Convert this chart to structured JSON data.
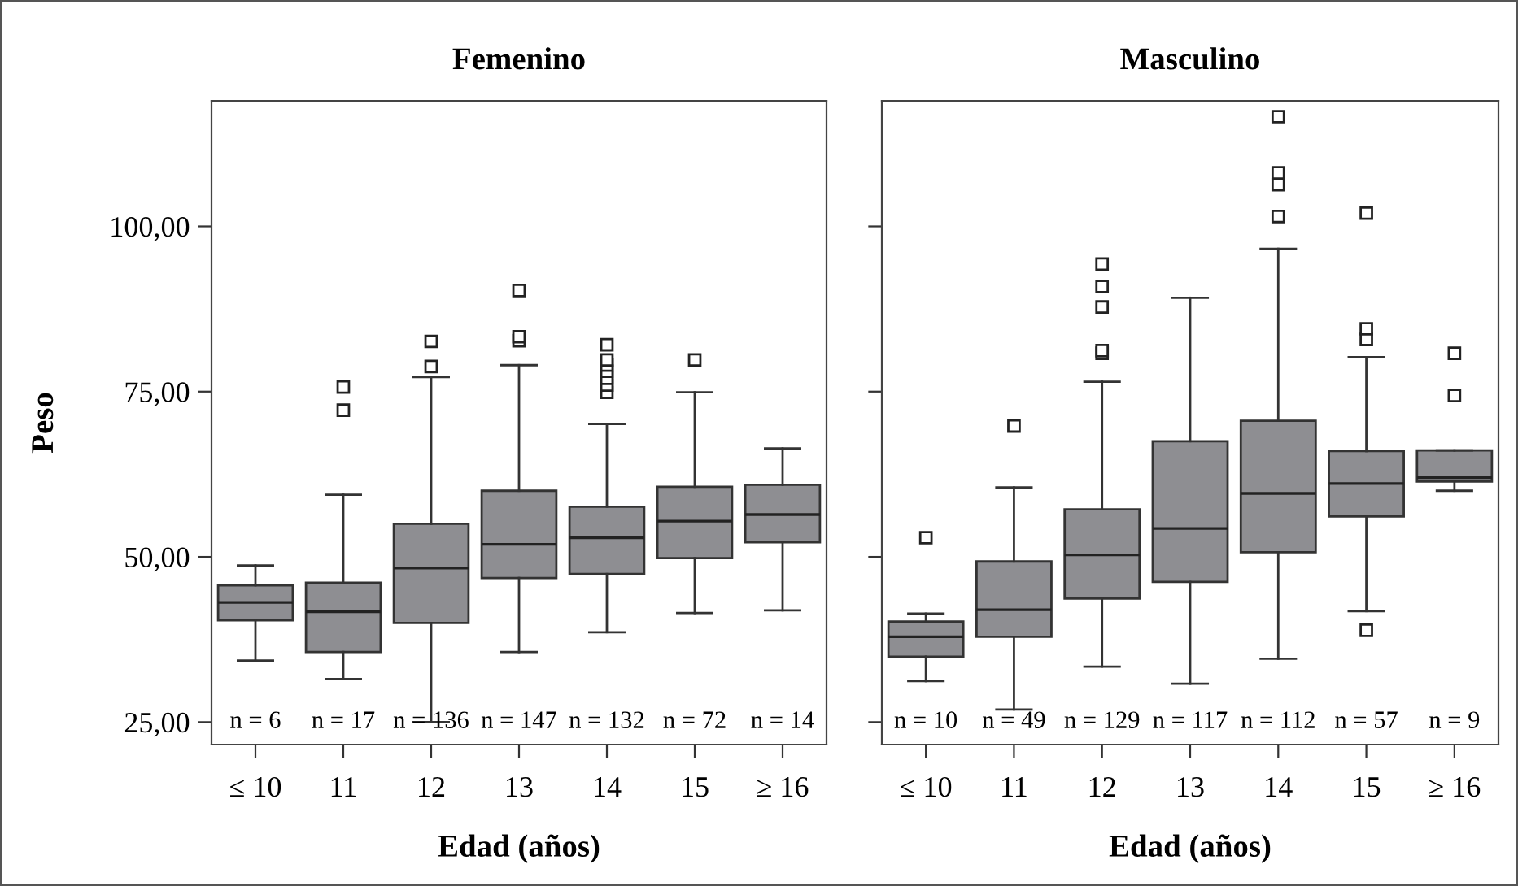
{
  "chart_data": [
    {
      "type": "box",
      "title": "Femenino",
      "xlabel": "Edad (años)",
      "ylabel": "Peso",
      "color": "#8e8e92",
      "marker": "square",
      "categories": [
        "≤ 10",
        "11",
        "12",
        "13",
        "14",
        "15",
        "≥ 16"
      ],
      "boxes": [
        {
          "low": 34.3,
          "q1": 40.4,
          "median": 43.1,
          "q3": 45.7,
          "high": 48.7
        },
        {
          "low": 31.5,
          "q1": 35.6,
          "median": 41.7,
          "q3": 46.1,
          "high": 59.4,
          "outliers": [
            72.2,
            75.7
          ]
        },
        {
          "low": 25.0,
          "q1": 40.0,
          "median": 48.3,
          "q3": 55.0,
          "high": 77.2,
          "outliers": [
            78.8,
            82.6
          ]
        },
        {
          "low": 35.6,
          "q1": 46.8,
          "median": 51.9,
          "q3": 60.0,
          "high": 79.0,
          "outliers": [
            82.7,
            83.3,
            90.3
          ]
        },
        {
          "low": 38.6,
          "q1": 47.4,
          "median": 52.9,
          "q3": 57.6,
          "high": 70.1,
          "outliers": [
            74.9,
            76.0,
            77.0,
            78.1,
            79.0,
            79.8,
            82.1
          ]
        },
        {
          "low": 41.5,
          "q1": 49.8,
          "median": 55.4,
          "q3": 60.6,
          "high": 74.9,
          "outliers": [
            79.8
          ]
        },
        {
          "low": 41.9,
          "q1": 52.2,
          "median": 56.4,
          "q3": 60.9,
          "high": 66.4
        }
      ],
      "ylim": [
        21.6,
        119
      ],
      "yticks": [
        {
          "value": 25,
          "label": "25,00"
        },
        {
          "value": 50,
          "label": "50,00"
        },
        {
          "value": 75,
          "label": "75,00"
        },
        {
          "value": 100,
          "label": "100,00"
        }
      ],
      "annotations": [
        "n = 6",
        "n = 17",
        "n = 136",
        "n = 147",
        "n = 132",
        "n = 72",
        "n = 14"
      ]
    },
    {
      "type": "box",
      "title": "Masculino",
      "xlabel": "Edad (años)",
      "color": "#8e8e92",
      "marker": "square",
      "tick_labels": "x",
      "categories": [
        "≤ 10",
        "11",
        "12",
        "13",
        "14",
        "15",
        "≥ 16"
      ],
      "boxes": [
        {
          "low": 31.2,
          "q1": 34.9,
          "median": 37.9,
          "q3": 40.2,
          "high": 41.4,
          "outliers": [
            52.9
          ]
        },
        {
          "low": 26.9,
          "q1": 37.9,
          "median": 42.0,
          "q3": 49.3,
          "high": 60.5,
          "outliers": [
            69.8
          ]
        },
        {
          "low": 33.4,
          "q1": 43.7,
          "median": 50.3,
          "q3": 57.2,
          "high": 76.5,
          "outliers": [
            80.8,
            81.2,
            87.8,
            90.9,
            94.3
          ]
        },
        {
          "low": 30.8,
          "q1": 46.2,
          "median": 54.3,
          "q3": 67.5,
          "high": 89.2
        },
        {
          "low": 34.6,
          "q1": 50.7,
          "median": 59.6,
          "q3": 70.6,
          "high": 96.6,
          "outliers": [
            101.5,
            106.3,
            108.1,
            116.6
          ]
        },
        {
          "low": 41.8,
          "q1": 56.1,
          "median": 61.1,
          "q3": 66.0,
          "high": 80.2,
          "outliers": [
            38.9,
            82.9,
            84.5,
            102.0
          ]
        },
        {
          "low": 60.0,
          "q1": 61.4,
          "median": 62.0,
          "q3": 66.1,
          "high": 66.1,
          "outliers": [
            74.4,
            80.8
          ]
        }
      ],
      "ylim": [
        21.6,
        119
      ],
      "yticks": [
        {
          "value": 25,
          "label": null
        },
        {
          "value": 50,
          "label": null
        },
        {
          "value": 75,
          "label": null
        },
        {
          "value": 100,
          "label": null
        }
      ],
      "annotations": [
        "n = 10",
        "n = 49",
        "n = 129",
        "n = 117",
        "n = 112",
        "n = 57",
        "n = 9"
      ]
    }
  ]
}
